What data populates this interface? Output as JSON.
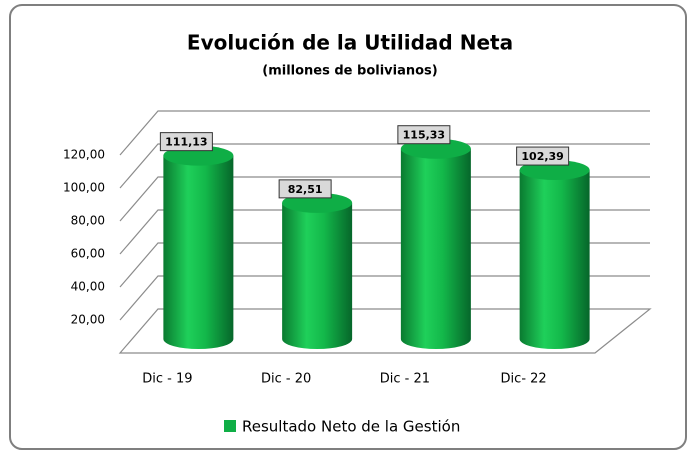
{
  "chart_data": {
    "type": "bar3d",
    "title": "Evolución de la Utilidad Neta",
    "subtitle": "(millones de bolivianos)",
    "categories": [
      "Dic - 19",
      "Dic - 20",
      "Dic - 21",
      "Dic- 22"
    ],
    "series": [
      {
        "name": "Resultado Neto de la Gestión",
        "color": "#0fae46",
        "values": [
          111.13,
          82.51,
          115.33,
          102.39
        ],
        "value_labels": [
          "111,13",
          "82,51",
          "115,33",
          "102,39"
        ]
      }
    ],
    "ylim": [
      0,
      120
    ],
    "yticks": [
      {
        "value": 20,
        "label": "20,00"
      },
      {
        "value": 40,
        "label": "40,00"
      },
      {
        "value": 60,
        "label": "60,00"
      },
      {
        "value": 80,
        "label": "80,00"
      },
      {
        "value": 100,
        "label": "100,00"
      },
      {
        "value": 120,
        "label": "120,00"
      }
    ],
    "grid": true,
    "legend": "bottom"
  }
}
